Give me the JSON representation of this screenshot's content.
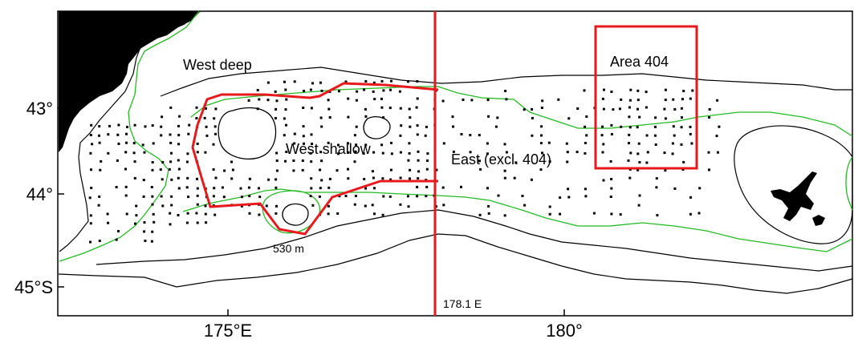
{
  "map": {
    "region_labels": {
      "west_deep": "West deep",
      "west_shallow": "West shallow",
      "east": "East (excl. 404)",
      "area_404": "Area 404"
    },
    "depth_label": "530 m",
    "meridian_label": "178.1 E",
    "lat_ticks": [
      "43°",
      "44°",
      "45°S"
    ],
    "lon_ticks": [
      "175°E",
      "180°"
    ],
    "colors": {
      "land": "#000000",
      "contour_green": "#22bb22",
      "contour_black": "#000000",
      "boundary_red": "#e8191c",
      "survey_points": "#000000"
    }
  }
}
